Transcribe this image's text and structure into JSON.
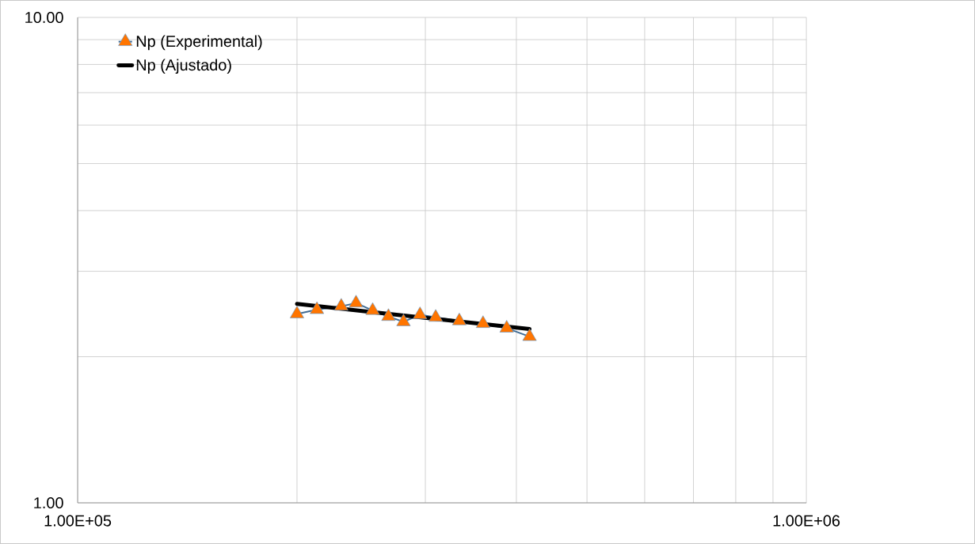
{
  "chart_data": {
    "type": "line",
    "log": "xy",
    "grid": true,
    "legend": "top left",
    "xlim": [
      100000,
      1000000
    ],
    "ylim": [
      1,
      10
    ],
    "xticks": [
      {
        "value": 100000,
        "label": "1.00E+05"
      },
      {
        "value": 200000,
        "label": null
      },
      {
        "value": 300000,
        "label": null
      },
      {
        "value": 400000,
        "label": null
      },
      {
        "value": 500000,
        "label": null
      },
      {
        "value": 600000,
        "label": null
      },
      {
        "value": 700000,
        "label": null
      },
      {
        "value": 800000,
        "label": null
      },
      {
        "value": 900000,
        "label": null
      },
      {
        "value": 1000000,
        "label": "1.00E+06"
      }
    ],
    "yticks": [
      {
        "value": 1,
        "label": "1.00"
      },
      {
        "value": 2,
        "label": null
      },
      {
        "value": 3,
        "label": null
      },
      {
        "value": 4,
        "label": null
      },
      {
        "value": 5,
        "label": null
      },
      {
        "value": 6,
        "label": null
      },
      {
        "value": 7,
        "label": null
      },
      {
        "value": 8,
        "label": null
      },
      {
        "value": 9,
        "label": null
      },
      {
        "value": 10,
        "label": "10.00"
      }
    ],
    "series": [
      {
        "name": "Np (Experimental)",
        "marker": "triangle",
        "color": "#5b9bd5",
        "x": [
          200000,
          213000,
          230000,
          241000,
          254000,
          267000,
          280000,
          295000,
          310000,
          334000,
          360000,
          388000,
          417000
        ],
        "values": [
          2.45,
          2.5,
          2.54,
          2.58,
          2.49,
          2.42,
          2.36,
          2.44,
          2.41,
          2.37,
          2.34,
          2.29,
          2.2
        ]
      },
      {
        "name": "Np (Ajustado)",
        "marker": "none",
        "color": "#000000",
        "x": [
          200000,
          417000
        ],
        "values": [
          2.57,
          2.28
        ]
      }
    ]
  }
}
